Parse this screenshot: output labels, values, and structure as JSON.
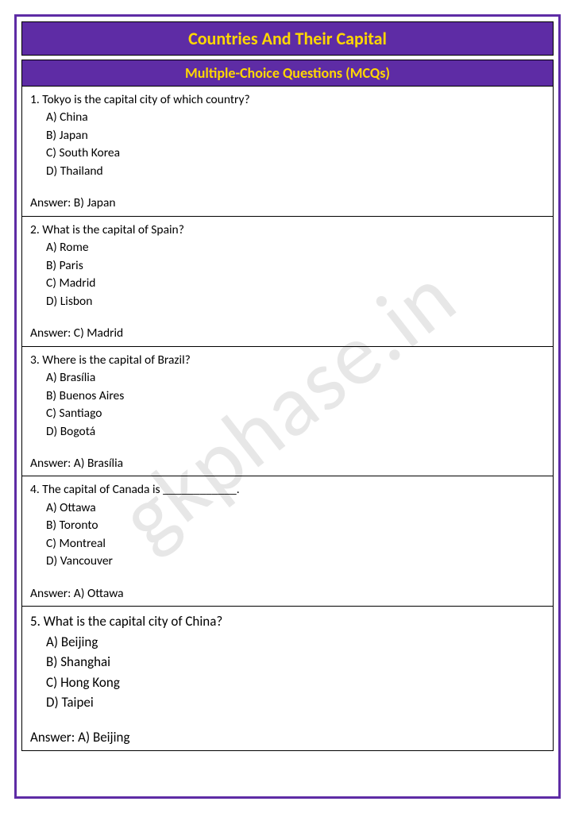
{
  "title": "Countries And Their Capital",
  "subtitle": "Multiple-Choice Questions (MCQs)",
  "watermark": "gkphase.in",
  "colors": {
    "frame": "#5e2ca5",
    "header_bg": "#5e2ca5",
    "header_text": "#ffd700",
    "body_text": "#000000",
    "watermark": "rgba(120,120,120,0.18)"
  },
  "questions": [
    {
      "q": "1. Tokyo is the capital city of which country?",
      "a": "A) China",
      "b": "B) Japan",
      "c": "C) South Korea",
      "d": "D) Thailand",
      "ans": "Answer: B) Japan",
      "larger": false
    },
    {
      "q": "2. What is the capital of Spain?",
      "a": "A) Rome",
      "b": "B) Paris",
      "c": "C) Madrid",
      "d": "D) Lisbon",
      "ans": "Answer: C) Madrid",
      "larger": false
    },
    {
      "q": "3. Where is the capital of Brazil?",
      "a": "A) Brasília",
      "b": "B) Buenos Aires",
      "c": "C) Santiago",
      "d": "D) Bogotá",
      "ans": "Answer: A) Brasília",
      "larger": false
    },
    {
      "q": "4. The capital of Canada is ____________.",
      "a": "A) Ottawa",
      "b": "B) Toronto",
      "c": "C) Montreal",
      "d": "D) Vancouver",
      "ans": "Answer: A) Ottawa",
      "larger": false
    },
    {
      "q": "5. What is the capital city of China?",
      "a": "A) Beijing",
      "b": "B) Shanghai",
      "c": "C) Hong Kong",
      "d": "D) Taipei",
      "ans": "Answer: A) Beijing",
      "larger": true
    }
  ]
}
